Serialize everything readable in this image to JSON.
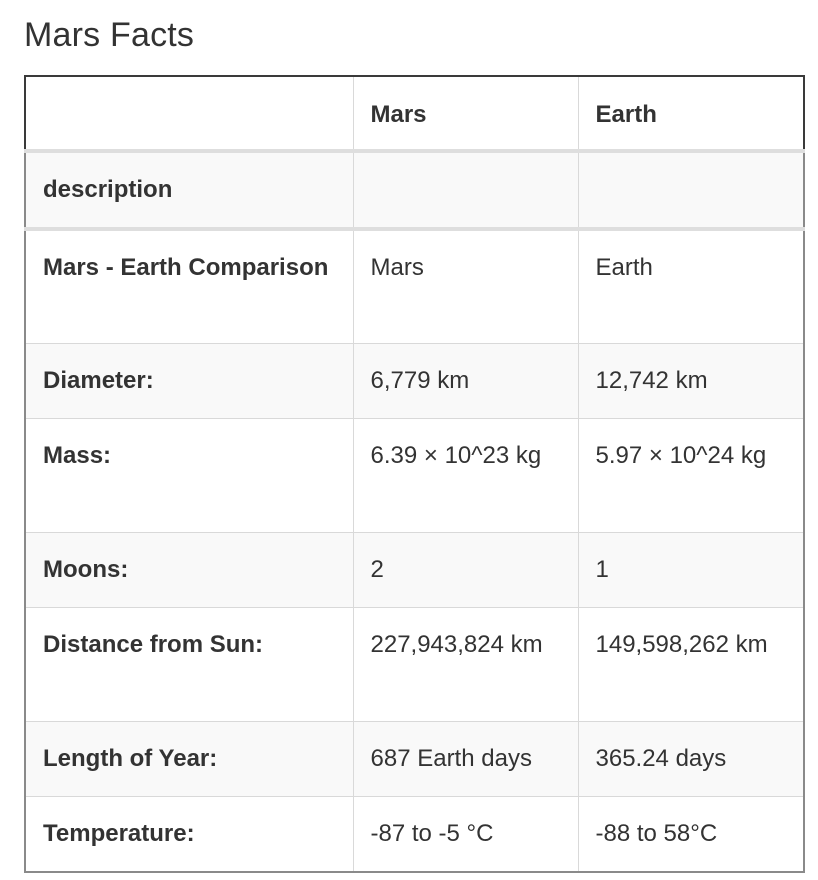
{
  "title": "Mars Facts",
  "table": {
    "headers": [
      "",
      "Mars",
      "Earth"
    ],
    "rows": [
      {
        "label": "description",
        "mars": "",
        "earth": ""
      },
      {
        "label": "Mars - Earth Comparison",
        "mars": "Mars",
        "earth": "Earth"
      },
      {
        "label": "Diameter:",
        "mars": "6,779 km",
        "earth": "12,742 km"
      },
      {
        "label": "Mass:",
        "mars": "6.39 × 10^23 kg",
        "earth": "5.97 × 10^24 kg"
      },
      {
        "label": "Moons:",
        "mars": "2",
        "earth": "1"
      },
      {
        "label": "Distance from Sun:",
        "mars": "227,943,824 km",
        "earth": "149,598,262 km"
      },
      {
        "label": "Length of Year:",
        "mars": "687 Earth days",
        "earth": "365.24 days"
      },
      {
        "label": "Temperature:",
        "mars": "-87 to -5 °C",
        "earth": "-88 to 58°C"
      }
    ]
  }
}
